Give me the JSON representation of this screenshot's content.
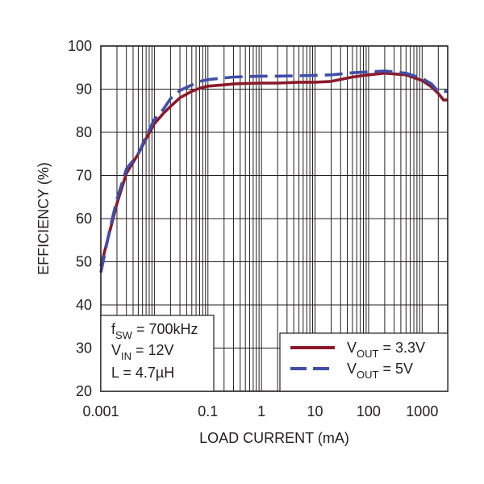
{
  "chart_data": {
    "type": "line",
    "xlabel": "LOAD CURRENT (mA)",
    "ylabel": "EFFICIENCY (%)",
    "xscale": "log",
    "xlim": [
      0.001,
      3000
    ],
    "ylim": [
      20,
      100
    ],
    "grid": true,
    "x_ticks": [
      {
        "value": 0.001,
        "label": "0.001"
      },
      {
        "value": 0.1,
        "label": "0.1"
      },
      {
        "value": 1,
        "label": "1"
      },
      {
        "value": 10,
        "label": "10"
      },
      {
        "value": 100,
        "label": "100"
      },
      {
        "value": 1000,
        "label": "1000"
      }
    ],
    "y_ticks": [
      {
        "value": 20,
        "label": "20"
      },
      {
        "value": 30,
        "label": "30"
      },
      {
        "value": 40,
        "label": "40"
      },
      {
        "value": 50,
        "label": "50"
      },
      {
        "value": 60,
        "label": "60"
      },
      {
        "value": 70,
        "label": "70"
      },
      {
        "value": 80,
        "label": "80"
      },
      {
        "value": 90,
        "label": "90"
      },
      {
        "value": 100,
        "label": "100"
      }
    ],
    "annotations": [
      {
        "main": "f",
        "sub": "SW",
        "rest": " = 700kHz"
      },
      {
        "main": "V",
        "sub": "IN",
        "rest": " = 12V"
      },
      {
        "main": "L = 4.7µH",
        "sub": "",
        "rest": ""
      }
    ],
    "legend_position": "bottom-right",
    "series": [
      {
        "name": "V_OUT = 3.3V",
        "legend_main": "V",
        "legend_sub": "OUT",
        "legend_rest": " = 3.3V",
        "color": "#8b1a2b",
        "dash": "solid",
        "x": [
          0.001,
          0.0015,
          0.002,
          0.003,
          0.005,
          0.007,
          0.01,
          0.015,
          0.02,
          0.03,
          0.05,
          0.07,
          0.1,
          0.2,
          0.3,
          0.5,
          1,
          2,
          5,
          10,
          20,
          50,
          100,
          200,
          500,
          1000,
          1500,
          2000,
          2500,
          3000
        ],
        "y": [
          49,
          57.5,
          63.5,
          70.5,
          75,
          78.5,
          82,
          84.5,
          86,
          88,
          89.5,
          90.2,
          90.7,
          91,
          91.2,
          91.3,
          91.4,
          91.4,
          91.6,
          91.6,
          91.8,
          92.8,
          93.3,
          93.7,
          93.3,
          92,
          90.5,
          89,
          87.5,
          87.5
        ]
      },
      {
        "name": "V_OUT = 5V",
        "legend_main": "V",
        "legend_sub": "OUT",
        "legend_rest": " = 5V",
        "color": "#3f4ea8",
        "dash": "dashed",
        "x": [
          0.001,
          0.0015,
          0.002,
          0.003,
          0.005,
          0.007,
          0.01,
          0.015,
          0.02,
          0.03,
          0.05,
          0.07,
          0.1,
          0.2,
          0.3,
          0.5,
          1,
          2,
          5,
          10,
          20,
          50,
          100,
          200,
          500,
          1000,
          1500,
          2000,
          2500,
          3000
        ],
        "y": [
          47.5,
          58,
          64.5,
          71.5,
          75,
          79,
          83,
          85.5,
          87.8,
          89.7,
          91,
          91.8,
          92.2,
          92.6,
          92.8,
          92.9,
          93,
          93,
          93.1,
          93.2,
          93.3,
          93.8,
          94,
          94.2,
          93.7,
          92.5,
          91.2,
          89.5,
          89.5,
          89.5
        ]
      }
    ]
  }
}
